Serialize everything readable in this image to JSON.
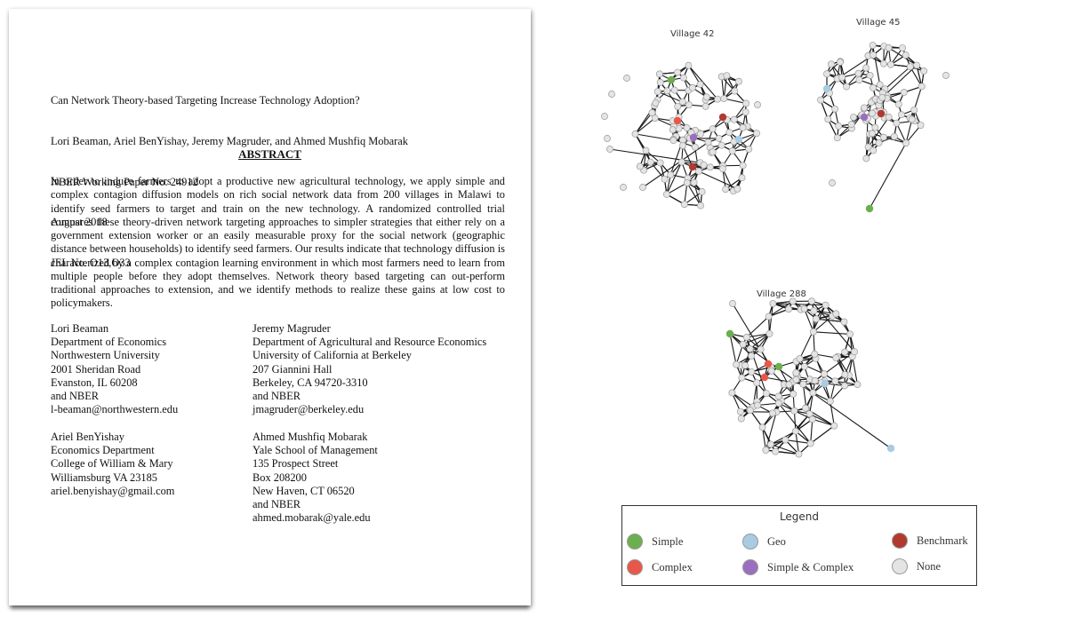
{
  "paper": {
    "header_lines": [
      "Can Network Theory-based Targeting Increase Technology Adoption?",
      "Lori Beaman, Ariel BenYishay, Jeremy Magruder, and Ahmed Mushfiq Mobarak",
      "NBER Working Paper No. 24912",
      "August 2018",
      "JEL No. O13,O33"
    ],
    "abstract_heading": "ABSTRACT",
    "abstract_text": "In order to induce farmers to adopt a productive new agricultural technology, we apply simple and complex contagion diffusion models on rich social network data from 200 villages in Malawi to identify seed farmers to target and train on the new technology.  A randomized controlled trial compares these theory-driven network targeting approaches to simpler  strategies that either rely on a government extension worker or an easily measurable proxy for the social network (geographic distance between households) to identify seed farmers.  Our results indicate that technology diffusion is characterized by a complex contagion learning environment in which most farmers need to learn from multiple people before they adopt themselves. Network theory based targeting can out-perform traditional approaches to extension, and we identify methods to realize these gains at low cost to policymakers.",
    "addresses": [
      [
        "Lori Beaman",
        "Department of Economics",
        "Northwestern University",
        "2001 Sheridan Road",
        "Evanston, IL 60208",
        "and NBER",
        "l-beaman@northwestern.edu"
      ],
      [
        "Jeremy Magruder",
        "Department of Agricultural and Resource Economics",
        "University of California at Berkeley",
        "207 Giannini Hall",
        "Berkeley, CA 94720-3310",
        "and NBER",
        "jmagruder@berkeley.edu"
      ],
      [
        "Ariel BenYishay",
        "Economics Department",
        "College of William & Mary",
        "Williamsburg VA 23185",
        "ariel.benyishay@gmail.com"
      ],
      [
        "Ahmed Mushfiq Mobarak",
        "Yale School of Management",
        "135 Prospect Street",
        "Box 208200",
        "New Haven, CT 06520",
        "and NBER",
        "ahmed.mobarak@yale.edu"
      ]
    ]
  },
  "networks": {
    "villages": [
      {
        "title": "Village 42"
      },
      {
        "title": "Village 45"
      },
      {
        "title": "Village 288"
      }
    ],
    "colors": {
      "simple": "#6ab04c",
      "complex": "#e8584a",
      "geo": "#a9cbe3",
      "simple_complex": "#9b6fbf",
      "benchmark": "#b03a2e",
      "none": "#e4e4e4"
    }
  },
  "legend": {
    "title": "Legend",
    "items": [
      {
        "key": "simple",
        "label": "Simple",
        "color": "#6ab04c"
      },
      {
        "key": "geo",
        "label": "Geo",
        "color": "#a9cbe3"
      },
      {
        "key": "benchmark",
        "label": "Benchmark",
        "color": "#b03a2e"
      },
      {
        "key": "complex",
        "label": "Complex",
        "color": "#e8584a"
      },
      {
        "key": "simple_complex",
        "label": "Simple & Complex",
        "color": "#9b6fbf"
      },
      {
        "key": "none",
        "label": "None",
        "color": "#e4e4e4"
      }
    ]
  }
}
